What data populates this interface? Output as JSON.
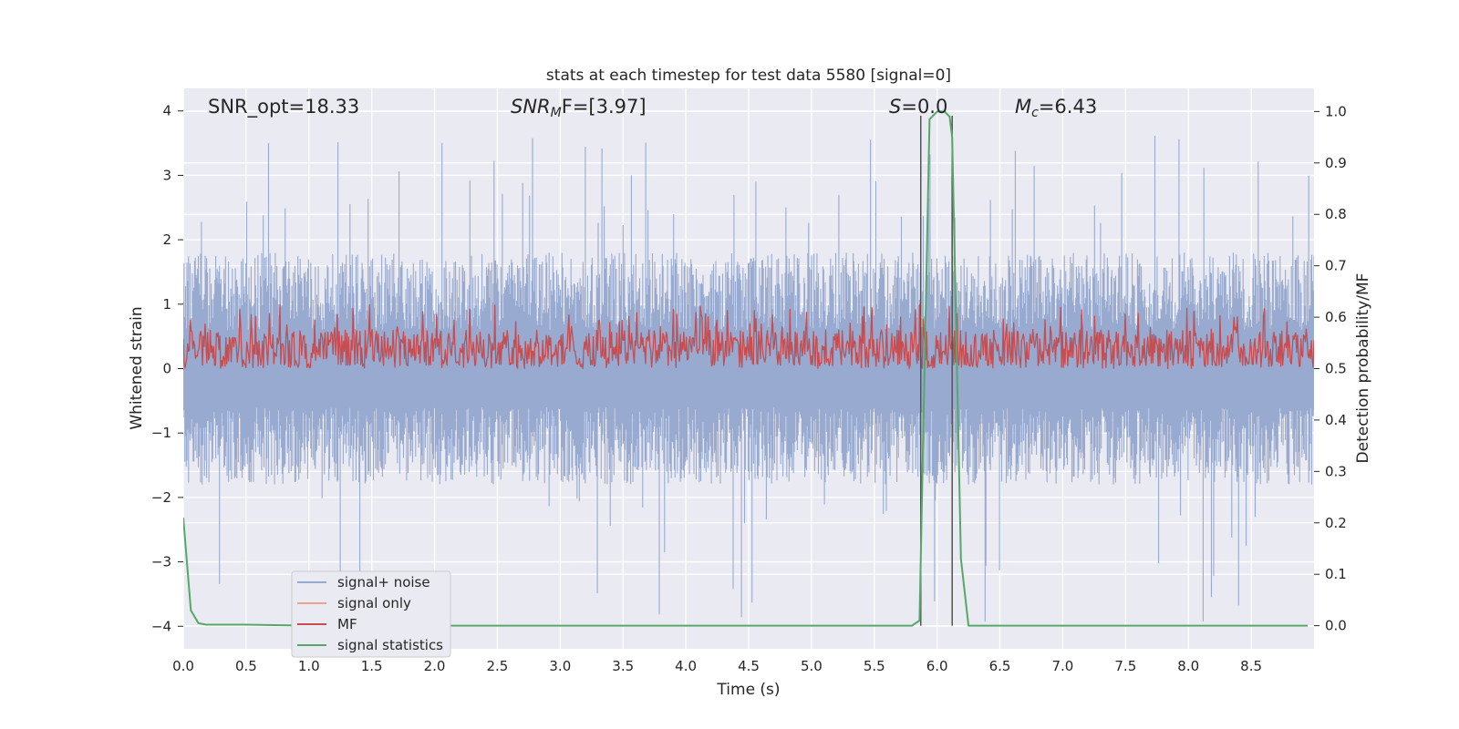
{
  "chart_data": {
    "type": "line",
    "title": "stats at each timestep for test data 5580 [signal=0]",
    "xlabel": "Time (s)",
    "ylabel": "Whitened strain",
    "y2label": "Detection probability/MF",
    "xlim": [
      0.0,
      9.0
    ],
    "ylim": [
      -4.35,
      4.35
    ],
    "y2lim": [
      -0.045,
      1.045
    ],
    "xticks": [
      "0.0",
      "0.5",
      "1.0",
      "1.5",
      "2.0",
      "2.5",
      "3.0",
      "3.5",
      "4.0",
      "4.5",
      "5.0",
      "5.5",
      "6.0",
      "6.5",
      "7.0",
      "7.5",
      "8.0",
      "8.5"
    ],
    "yticks": [
      "4",
      "3",
      "2",
      "1",
      "0",
      "−1",
      "−2",
      "−3",
      "−4"
    ],
    "y2ticks": [
      "1.0",
      "0.9",
      "0.8",
      "0.7",
      "0.6",
      "0.5",
      "0.4",
      "0.3",
      "0.2",
      "0.1",
      "0.0"
    ],
    "grid": true,
    "legend_position": "bottom-left",
    "annotations": {
      "snr_opt": "SNR_opt=18.33",
      "snr_mf_sym": "SNR",
      "snr_mf_sub": "M",
      "snr_mf_rest": "F=[3.97]",
      "s_sym": "S",
      "s_rest": "=0.0",
      "mc_sym": "M",
      "mc_sub": "c",
      "mc_rest": "=6.43"
    },
    "vertical_lines_x": [
      5.87,
      6.12
    ],
    "series": [
      {
        "name": "signal+ noise",
        "color": "#98aacf",
        "axis": "left",
        "style": "dense noise",
        "x_range": [
          0.0,
          9.0
        ],
        "envelope_typical": [
          -1.6,
          1.6
        ],
        "peak_max": 3.7,
        "peak_min": -3.98
      },
      {
        "name": "signal only",
        "color": "#eaa58c",
        "axis": "left",
        "values": []
      },
      {
        "name": "MF",
        "color": "#c44e52",
        "axis": "right",
        "style": "dense noise",
        "x_range": [
          0.0,
          9.0
        ],
        "envelope_typical": [
          0.5,
          0.62
        ],
        "peak_max": 0.625
      },
      {
        "name": "signal statistics",
        "color": "#55a868",
        "axis": "right",
        "x": [
          0.0,
          0.06,
          0.12,
          0.18,
          0.5,
          1.0,
          3.0,
          5.5,
          5.8,
          5.86,
          5.9,
          5.94,
          6.0,
          6.06,
          6.1,
          6.12,
          6.19,
          6.25,
          6.4,
          8.95
        ],
        "values": [
          0.21,
          0.03,
          0.005,
          0.002,
          0.002,
          0.0,
          0.0,
          0.0,
          0.0,
          0.01,
          0.5,
          0.985,
          1.0,
          1.0,
          0.99,
          0.95,
          0.13,
          0.0,
          0.0,
          0.0
        ]
      }
    ]
  }
}
